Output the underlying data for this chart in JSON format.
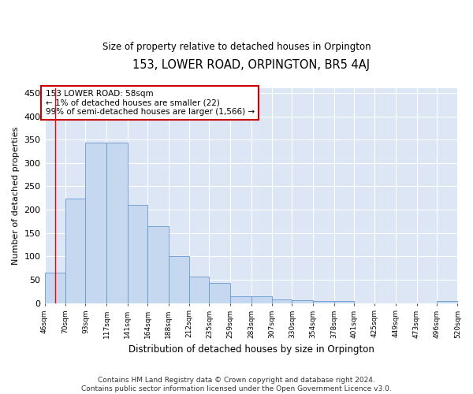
{
  "title": "153, LOWER ROAD, ORPINGTON, BR5 4AJ",
  "subtitle": "Size of property relative to detached houses in Orpington",
  "xlabel": "Distribution of detached houses by size in Orpington",
  "ylabel": "Number of detached properties",
  "bar_color": "#c5d8f0",
  "bar_edge_color": "#6699cc",
  "background_color": "#dce6f5",
  "fig_background_color": "#ffffff",
  "grid_color": "#ffffff",
  "annotation_text_line1": "153 LOWER ROAD: 58sqm",
  "annotation_text_line2": "← 1% of detached houses are smaller (22)",
  "annotation_text_line3": "99% of semi-detached houses are larger (1,566) →",
  "vline_x": 58,
  "footer": "Contains HM Land Registry data © Crown copyright and database right 2024.\nContains public sector information licensed under the Open Government Licence v3.0.",
  "bins": [
    46,
    70,
    93,
    117,
    141,
    164,
    188,
    212,
    235,
    259,
    283,
    307,
    330,
    354,
    378,
    401,
    425,
    449,
    473,
    496,
    520
  ],
  "heights": [
    65,
    224,
    343,
    344,
    210,
    165,
    100,
    56,
    43,
    15,
    15,
    8,
    7,
    5,
    4,
    0,
    0,
    0,
    0,
    4
  ],
  "ylim": [
    0,
    460
  ],
  "yticks": [
    0,
    50,
    100,
    150,
    200,
    250,
    300,
    350,
    400,
    450
  ]
}
